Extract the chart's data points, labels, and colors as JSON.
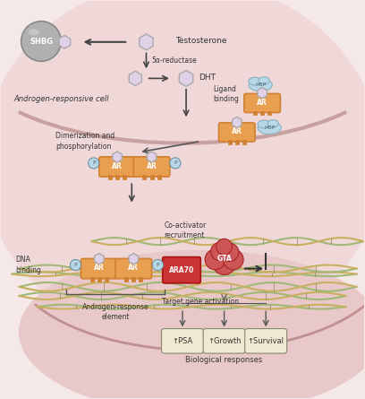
{
  "bg_outer": "#f5e8e8",
  "bg_cell_outer": "#f0d8d8",
  "bg_cell_inner": "#e8c8c8",
  "bg_nucleus": "#ddb8b8",
  "ar_color": "#e8a050",
  "ar_dark": "#d08030",
  "hsp_color": "#b8d8e8",
  "shbg_color": "#b0b0b0",
  "shbg_dark": "#888888",
  "testosterone_color": "#e0d0e8",
  "dht_color": "#e0d0e8",
  "ara70_color": "#cc3333",
  "gta_color": "#cc5555",
  "response_box_color": "#f0e8d0",
  "dna_color1": "#a0b878",
  "dna_color2": "#c8b060",
  "p_circle_color": "#b8d8e8",
  "text_color": "#333333",
  "arrow_color": "#555555",
  "title_cell": "Androgen-responsive cell",
  "label_testosterone": "Testosterone",
  "label_shbg": "SHBG",
  "label_5a": "5α-reductase",
  "label_dht": "DHT",
  "label_ligand": "Ligand\nbinding",
  "label_hsp": "HSP",
  "label_ar": "AR",
  "label_dimerization": "Dimerization and\nphosphorylation",
  "label_dna_binding": "DNA\nbinding",
  "label_co_activator": "Co-activator\nrecruitment",
  "label_ara70": "ARA70",
  "label_gta": "GTA",
  "label_androgen_response": "Androgen-response\nelement",
  "label_target_gene": "Target gene activation",
  "label_psa": "↑PSA",
  "label_growth": "↑Growth",
  "label_survival": "↑Survival",
  "label_biological": "Biological responses",
  "figsize": [
    4.08,
    4.45
  ],
  "dpi": 100
}
